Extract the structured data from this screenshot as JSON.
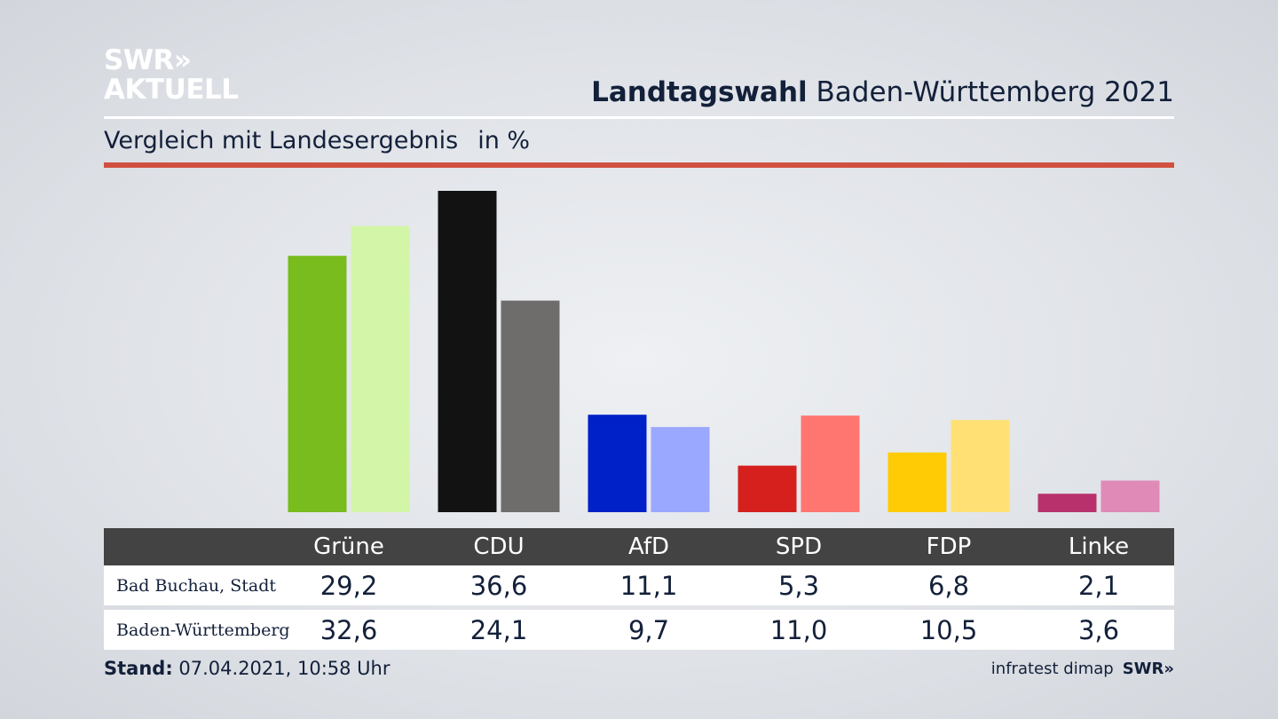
{
  "logo": {
    "line1": "SWR»",
    "line2": "AKTUELL"
  },
  "header": {
    "title_bold": "Landtagswahl",
    "title_rest": " Baden-Württemberg 2021"
  },
  "subtitle": {
    "text": "Vergleich mit Landesergebnis",
    "unit": "in %"
  },
  "chart_data": {
    "type": "bar",
    "categories": [
      "Grüne",
      "CDU",
      "AfD",
      "SPD",
      "FDP",
      "Linke"
    ],
    "series": [
      {
        "name": "Bad Buchau, Stadt",
        "values": [
          29.2,
          36.6,
          11.1,
          5.3,
          6.8,
          2.1
        ],
        "colors": [
          "#78bc1e",
          "#121212",
          "#0020c8",
          "#d5201e",
          "#ffcb05",
          "#b8316d"
        ]
      },
      {
        "name": "Baden-Württemberg",
        "values": [
          32.6,
          24.1,
          9.7,
          11.0,
          10.5,
          3.6
        ],
        "colors": [
          "#d3f5a8",
          "#6e6d6b",
          "#9ba8ff",
          "#ff7570",
          "#ffe074",
          "#e08ab8"
        ]
      }
    ],
    "ylim": [
      0,
      36.6
    ]
  },
  "table": {
    "headers": [
      "Grüne",
      "CDU",
      "AfD",
      "SPD",
      "FDP",
      "Linke"
    ],
    "rows": [
      {
        "label": "Bad Buchau, Stadt",
        "values": [
          "29,2",
          "36,6",
          "11,1",
          "5,3",
          "6,8",
          "2,1"
        ]
      },
      {
        "label": "Baden-Württemberg",
        "values": [
          "32,6",
          "24,1",
          "9,7",
          "11,0",
          "10,5",
          "3,6"
        ]
      }
    ]
  },
  "footer": {
    "stand_label": "Stand:",
    "stand_value": " 07.04.2021, 10:58 Uhr",
    "source": "infratest dimap",
    "source_logo": "SWR»"
  }
}
